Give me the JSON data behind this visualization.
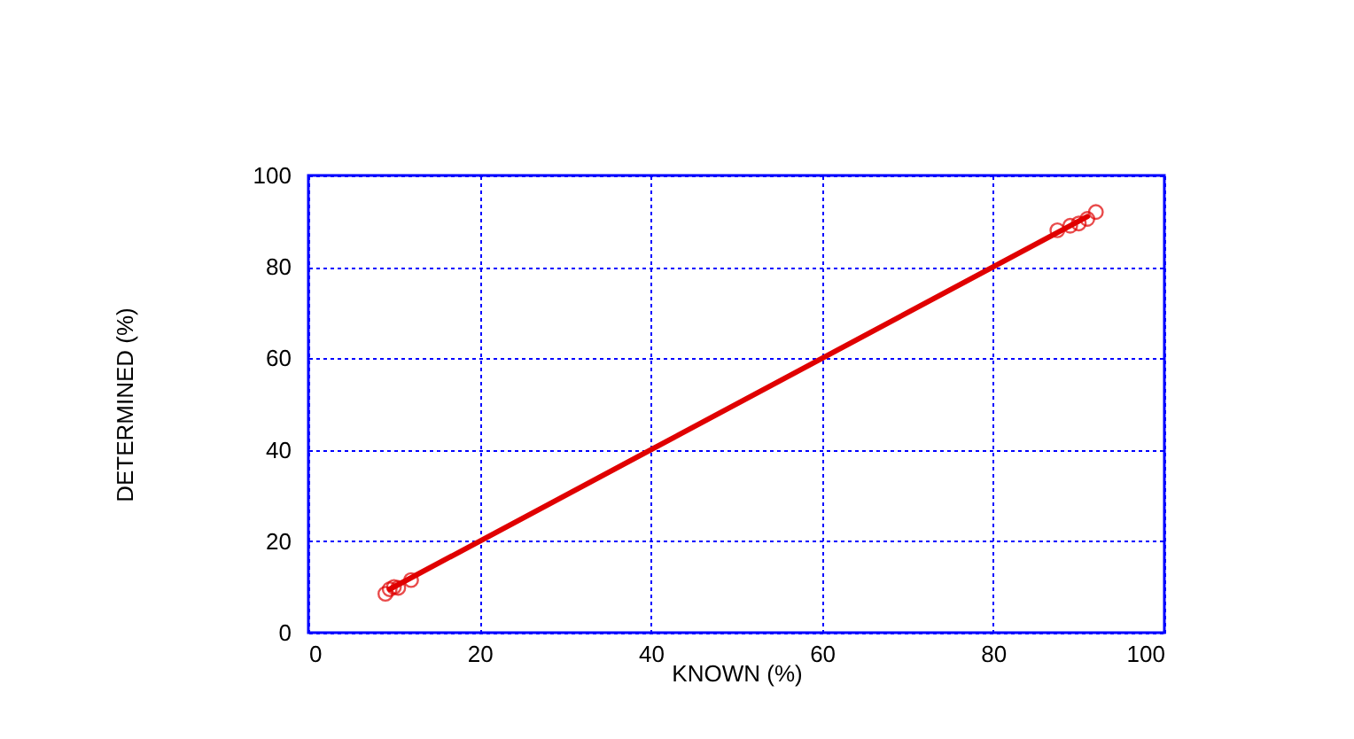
{
  "chart_data": {
    "type": "scatter",
    "xlabel": "KNOWN (%)",
    "ylabel": "DETERMINED (%)",
    "xlim": [
      0,
      100
    ],
    "ylim": [
      0,
      100
    ],
    "xticks": [
      0,
      20,
      40,
      60,
      80,
      100
    ],
    "yticks": [
      0,
      20,
      40,
      60,
      80,
      100
    ],
    "grid": true,
    "marker": "circle",
    "series": [
      {
        "color": "#e00000",
        "x": [
          9.0,
          9.5,
          10.0,
          10.5,
          12.0,
          87.5,
          89.0,
          90.0,
          91.0,
          92.0
        ],
        "values": [
          8.5,
          9.5,
          10.0,
          9.8,
          11.5,
          88.0,
          89.0,
          89.5,
          90.5,
          92.0
        ]
      },
      {
        "type": "line",
        "color": "#e00000",
        "marker": "none",
        "x": [
          9.5,
          91.0
        ],
        "values": [
          9.5,
          91.0
        ]
      }
    ]
  }
}
